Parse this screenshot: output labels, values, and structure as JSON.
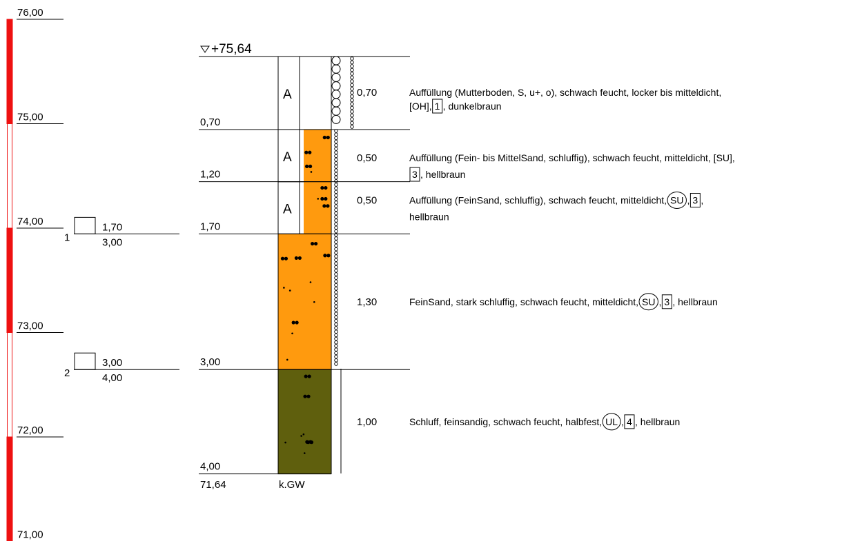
{
  "scale": {
    "labels": [
      "76,00",
      "75,00",
      "74,00",
      "73,00",
      "72,00",
      "71,00"
    ],
    "range_top": 76.0,
    "range_bottom": 71.0,
    "colors": {
      "filled": "#ee1111",
      "outline": "#ee1111"
    }
  },
  "borehole": {
    "top_elevation_label": "+75,64",
    "top_elevation": 75.64,
    "final_depth": 4.0,
    "bottom_elevation_label": "71,64",
    "groundwater_label": "k.GW"
  },
  "samples": [
    {
      "number": "1",
      "top": "1,70",
      "bottom": "3,00"
    },
    {
      "number": "2",
      "top": "3,00",
      "bottom": "4,00"
    }
  ],
  "layers": [
    {
      "depth_label": "0,70",
      "thickness_label": "0,70",
      "fill_marker": "A",
      "soil_color": "#ffffff",
      "description_lines": [
        [
          "Auffüllung (Mutterboden, S, u+, o), schwach feucht, locker bis mitteldicht,"
        ],
        [
          "[OH],",
          {
            "box": "1"
          },
          ", dunkelbraun"
        ]
      ]
    },
    {
      "depth_label": "1,20",
      "thickness_label": "0,50",
      "fill_marker": "A",
      "soil_color": "#ff9a0e",
      "description_lines": [
        [
          "Auffüllung (Fein- bis MittelSand, schluffig), schwach feucht, mitteldicht, [SU],"
        ],
        [
          {
            "box": "3"
          },
          ", hellbraun"
        ]
      ]
    },
    {
      "depth_label": "1,70",
      "thickness_label": "0,50",
      "fill_marker": "A",
      "soil_color": "#ff9a0e",
      "description_lines": [
        [
          "Auffüllung (FeinSand, schluffig), schwach feucht, mitteldicht,",
          {
            "circle": "SU"
          },
          ",",
          {
            "box": "3"
          },
          ","
        ],
        [
          "hellbraun"
        ]
      ]
    },
    {
      "depth_label": "3,00",
      "thickness_label": "1,30",
      "fill_marker": "",
      "soil_color": "#ff9a0e",
      "description_lines": [
        [
          "FeinSand, stark schluffig, schwach feucht, mitteldicht,",
          {
            "circle": "SU"
          },
          ",",
          {
            "box": "3"
          },
          ", hellbraun"
        ]
      ]
    },
    {
      "depth_label": "4,00",
      "thickness_label": "1,00",
      "fill_marker": "",
      "soil_color": "#5f5f0d",
      "description_lines": [
        [
          "Schluff, feinsandig, schwach feucht, halbfest,",
          {
            "circle": "UL"
          },
          ",",
          {
            "box": "4"
          },
          ", hellbraun"
        ]
      ]
    }
  ]
}
